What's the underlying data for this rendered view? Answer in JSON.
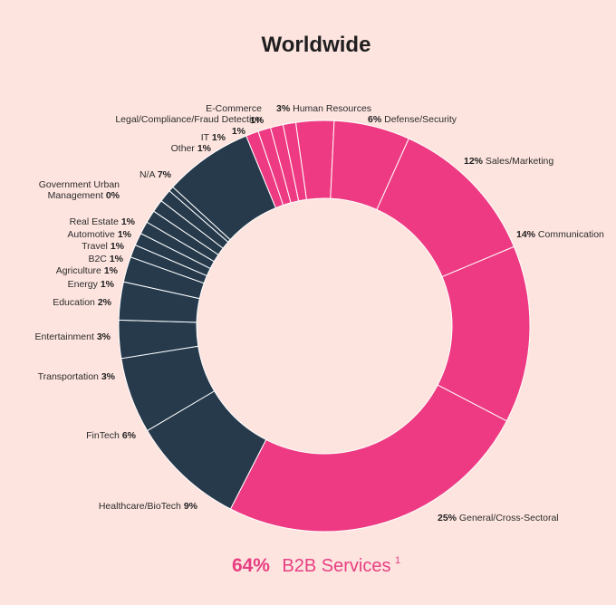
{
  "chart_data": {
    "type": "pie",
    "title": "Worldwide",
    "colors": {
      "b2b": "#ee3a82",
      "other": "#263a4c",
      "separator": "#ffffff",
      "background": "#fde4df"
    },
    "slices": [
      {
        "label": "Human Resources",
        "pct": "3%",
        "value": 3,
        "group": "b2b"
      },
      {
        "label": "Defense/Security",
        "pct": "6%",
        "value": 6,
        "group": "b2b"
      },
      {
        "label": "Sales/Marketing",
        "pct": "12%",
        "value": 12,
        "group": "b2b"
      },
      {
        "label": "Communication",
        "pct": "14%",
        "value": 14,
        "group": "b2b"
      },
      {
        "label": "General/Cross-Sectoral",
        "pct": "25%",
        "value": 25,
        "group": "b2b"
      },
      {
        "label": "Healthcare/BioTech",
        "pct": "9%",
        "value": 9,
        "group": "other"
      },
      {
        "label": "FinTech",
        "pct": "6%",
        "value": 6,
        "group": "other"
      },
      {
        "label": "Transportation",
        "pct": "3%",
        "value": 3,
        "group": "other"
      },
      {
        "label": "Entertainment",
        "pct": "3%",
        "value": 3,
        "group": "other"
      },
      {
        "label": "Education",
        "pct": "2%",
        "value": 2,
        "group": "other"
      },
      {
        "label": "Energy",
        "pct": "1%",
        "value": 1,
        "group": "other"
      },
      {
        "label": "Agriculture",
        "pct": "1%",
        "value": 1,
        "group": "other"
      },
      {
        "label": "B2C",
        "pct": "1%",
        "value": 1,
        "group": "other"
      },
      {
        "label": "Travel",
        "pct": "1%",
        "value": 1,
        "group": "other"
      },
      {
        "label": "Automotive",
        "pct": "1%",
        "value": 1,
        "group": "other"
      },
      {
        "label": "Real Estate",
        "pct": "1%",
        "value": 1,
        "group": "other"
      },
      {
        "label": "Government Urban Management",
        "pct": "0%",
        "value": 0.4,
        "group": "other"
      },
      {
        "label": "N/A",
        "pct": "7%",
        "value": 7,
        "group": "other"
      },
      {
        "label": "Other",
        "pct": "1%",
        "value": 1,
        "group": "b2b"
      },
      {
        "label": "IT",
        "pct": "1%",
        "value": 1,
        "group": "b2b"
      },
      {
        "label": "Legal/Compliance/Fraud Detection",
        "pct": "1%",
        "value": 1,
        "group": "b2b"
      },
      {
        "label": "E-Commerce",
        "pct": "1%",
        "value": 1,
        "group": "b2b"
      }
    ],
    "footer": {
      "value": "64%",
      "label": "B2B Services",
      "footnote": "1"
    }
  }
}
